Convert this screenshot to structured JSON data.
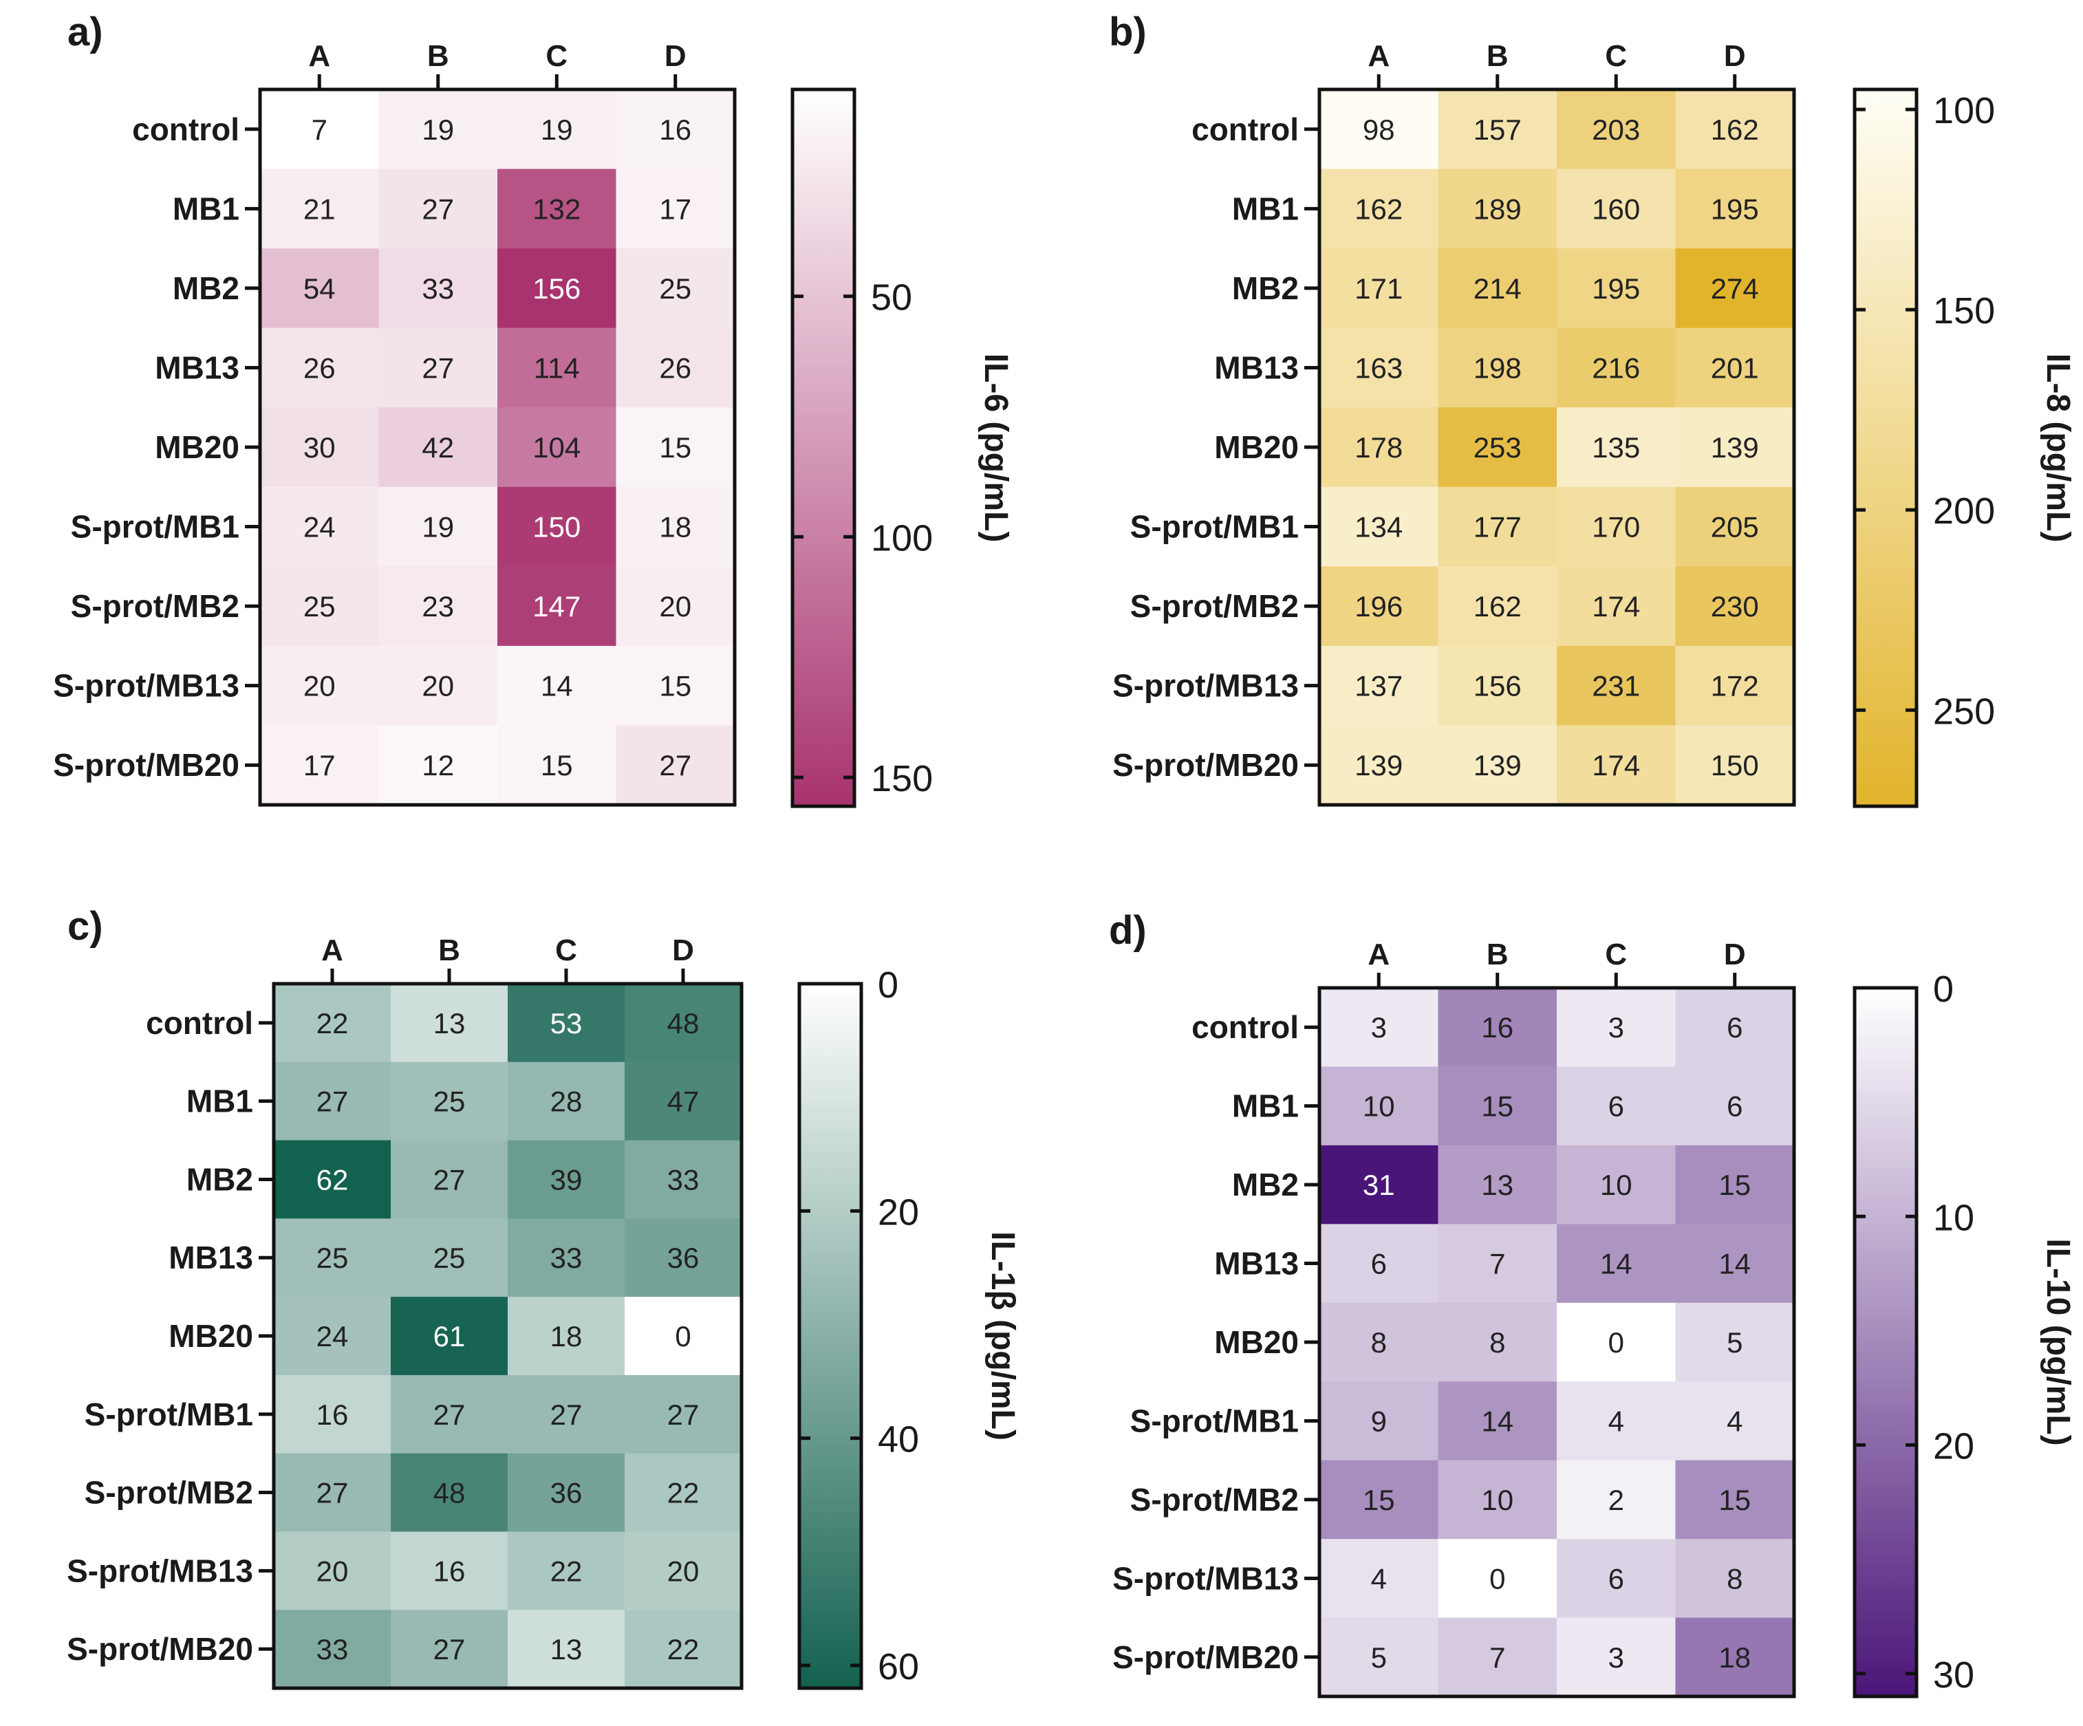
{
  "chart_data": [
    {
      "type": "heatmap",
      "panel_label": "a)",
      "columns": [
        "A",
        "B",
        "C",
        "D"
      ],
      "rows": [
        "control",
        "MB1",
        "MB2",
        "MB13",
        "MB20",
        "S-prot/MB1",
        "S-prot/MB2",
        "S-prot/MB13",
        "S-prot/MB20"
      ],
      "values": [
        [
          7,
          19,
          19,
          16
        ],
        [
          21,
          27,
          132,
          17
        ],
        [
          54,
          33,
          156,
          25
        ],
        [
          26,
          27,
          114,
          26
        ],
        [
          30,
          42,
          104,
          15
        ],
        [
          24,
          19,
          150,
          18
        ],
        [
          25,
          23,
          147,
          20
        ],
        [
          20,
          20,
          14,
          15
        ],
        [
          17,
          12,
          15,
          27
        ]
      ],
      "colorbar": {
        "label": "IL-6 (pg/mL)",
        "range": [
          7,
          156
        ],
        "ticks": [
          50,
          100,
          150
        ]
      },
      "colors": {
        "low": "#ffffff",
        "high": "#a8336e"
      }
    },
    {
      "type": "heatmap",
      "panel_label": "b)",
      "columns": [
        "A",
        "B",
        "C",
        "D"
      ],
      "rows": [
        "control",
        "MB1",
        "MB2",
        "MB13",
        "MB20",
        "S-prot/MB1",
        "S-prot/MB2",
        "S-prot/MB13",
        "S-prot/MB20"
      ],
      "values": [
        [
          98,
          157,
          203,
          162
        ],
        [
          162,
          189,
          160,
          195
        ],
        [
          171,
          214,
          195,
          274
        ],
        [
          163,
          198,
          216,
          201
        ],
        [
          178,
          253,
          135,
          139
        ],
        [
          134,
          177,
          170,
          205
        ],
        [
          196,
          162,
          174,
          230
        ],
        [
          137,
          156,
          231,
          172
        ],
        [
          139,
          139,
          174,
          150
        ]
      ],
      "colorbar": {
        "label": "IL-8 (pg/mL)",
        "range": [
          95,
          274
        ],
        "ticks": [
          100,
          150,
          200,
          250
        ]
      },
      "colors": {
        "low": "#fffef6",
        "high": "#e2b42c"
      }
    },
    {
      "type": "heatmap",
      "panel_label": "c)",
      "columns": [
        "A",
        "B",
        "C",
        "D"
      ],
      "rows": [
        "control",
        "MB1",
        "MB2",
        "MB13",
        "MB20",
        "S-prot/MB1",
        "S-prot/MB2",
        "S-prot/MB13",
        "S-prot/MB20"
      ],
      "values": [
        [
          22,
          13,
          53,
          48
        ],
        [
          27,
          25,
          28,
          47
        ],
        [
          62,
          27,
          39,
          33
        ],
        [
          25,
          25,
          33,
          36
        ],
        [
          24,
          61,
          18,
          0
        ],
        [
          16,
          27,
          27,
          27
        ],
        [
          27,
          48,
          36,
          22
        ],
        [
          20,
          16,
          22,
          20
        ],
        [
          33,
          27,
          13,
          22
        ]
      ],
      "colorbar": {
        "label": "IL-1β (pg/mL)",
        "range": [
          0,
          62
        ],
        "ticks": [
          0,
          20,
          40,
          60
        ]
      },
      "colors": {
        "low": "#ffffff",
        "high": "#13614f"
      }
    },
    {
      "type": "heatmap",
      "panel_label": "d)",
      "columns": [
        "A",
        "B",
        "C",
        "D"
      ],
      "rows": [
        "control",
        "MB1",
        "MB2",
        "MB13",
        "MB20",
        "S-prot/MB1",
        "S-prot/MB2",
        "S-prot/MB13",
        "S-prot/MB20"
      ],
      "values": [
        [
          3,
          16,
          3,
          6
        ],
        [
          10,
          15,
          6,
          6
        ],
        [
          31,
          13,
          10,
          15
        ],
        [
          6,
          7,
          14,
          14
        ],
        [
          8,
          8,
          0,
          5
        ],
        [
          9,
          14,
          4,
          4
        ],
        [
          15,
          10,
          2,
          15
        ],
        [
          4,
          0,
          6,
          8
        ],
        [
          5,
          7,
          3,
          18
        ]
      ],
      "colorbar": {
        "label": "IL-10 (pg/mL)",
        "range": [
          0,
          31
        ],
        "ticks": [
          0,
          10,
          20,
          30
        ]
      },
      "colors": {
        "low": "#ffffff",
        "high": "#4a1578"
      }
    }
  ]
}
